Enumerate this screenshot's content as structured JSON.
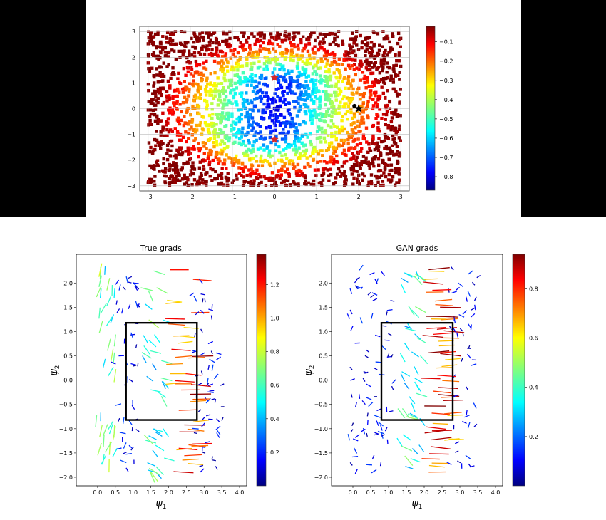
{
  "chart_data": [
    {
      "type": "heatmap",
      "title": "",
      "xlabel": "",
      "ylabel": "",
      "xlim": [
        -3.2,
        3.2
      ],
      "ylim": [
        -3.2,
        3.2
      ],
      "xticks": [
        "−3",
        "−2",
        "−1",
        "0",
        "1",
        "2",
        "3"
      ],
      "yticks": [
        "3",
        "2",
        "1",
        "0",
        "−1",
        "−2",
        "−3"
      ],
      "grid": true,
      "colorbar": {
        "min": -0.87,
        "max": -0.02,
        "ticks": [
          "−0.1",
          "−0.2",
          "−0.3",
          "−0.4",
          "−0.5",
          "−0.6",
          "−0.7",
          "−0.8"
        ]
      },
      "markers": [
        {
          "shape": "star",
          "color": "#d62728",
          "x": 0.0,
          "y": 1.2
        },
        {
          "shape": "star",
          "color": "#d62728",
          "x": 0.0,
          "y": -1.2
        },
        {
          "shape": "dot",
          "color": "#000000",
          "x": 1.9,
          "y": 0.1
        },
        {
          "shape": "star",
          "color": "#000000",
          "x": 2.0,
          "y": 0.0
        }
      ]
    },
    {
      "type": "scatter",
      "title": "True grads",
      "xlabel": "ψ1",
      "ylabel": "ψ2",
      "xlim": [
        -0.4,
        4.0
      ],
      "ylim": [
        -2.0,
        2.4
      ],
      "xticks": [
        "0.0",
        "0.5",
        "1.0",
        "1.5",
        "2.0",
        "2.5",
        "3.0",
        "3.5",
        "4.0"
      ],
      "yticks": [
        "2.0",
        "1.5",
        "1.0",
        "0.5",
        "0.0",
        "−0.5",
        "−1.0",
        "−1.5",
        "−2.0"
      ],
      "box": {
        "x": [
          0.8,
          2.8
        ],
        "y": [
          -0.82,
          1.18
        ]
      },
      "colorbar": {
        "min": 0.0,
        "max": 1.38,
        "ticks": [
          "1.2",
          "1.0",
          "0.8",
          "0.6",
          "0.4",
          "0.2"
        ]
      }
    },
    {
      "type": "scatter",
      "title": "GAN grads",
      "xlabel": "ψ1",
      "ylabel": "ψ2",
      "xlim": [
        -0.4,
        4.0
      ],
      "ylim": [
        -2.0,
        2.4
      ],
      "xticks": [
        "0.0",
        "0.5",
        "1.0",
        "1.5",
        "2.0",
        "2.5",
        "3.0",
        "3.5",
        "4.0"
      ],
      "yticks": [
        "2.0",
        "1.5",
        "1.0",
        "0.5",
        "0.0",
        "−0.5",
        "−1.0",
        "−1.5",
        "−2.0"
      ],
      "box": {
        "x": [
          0.8,
          2.8
        ],
        "y": [
          -0.82,
          1.18
        ]
      },
      "colorbar": {
        "min": 0.0,
        "max": 0.94,
        "ticks": [
          "0.8",
          "0.6",
          "0.4",
          "0.2"
        ]
      }
    }
  ]
}
